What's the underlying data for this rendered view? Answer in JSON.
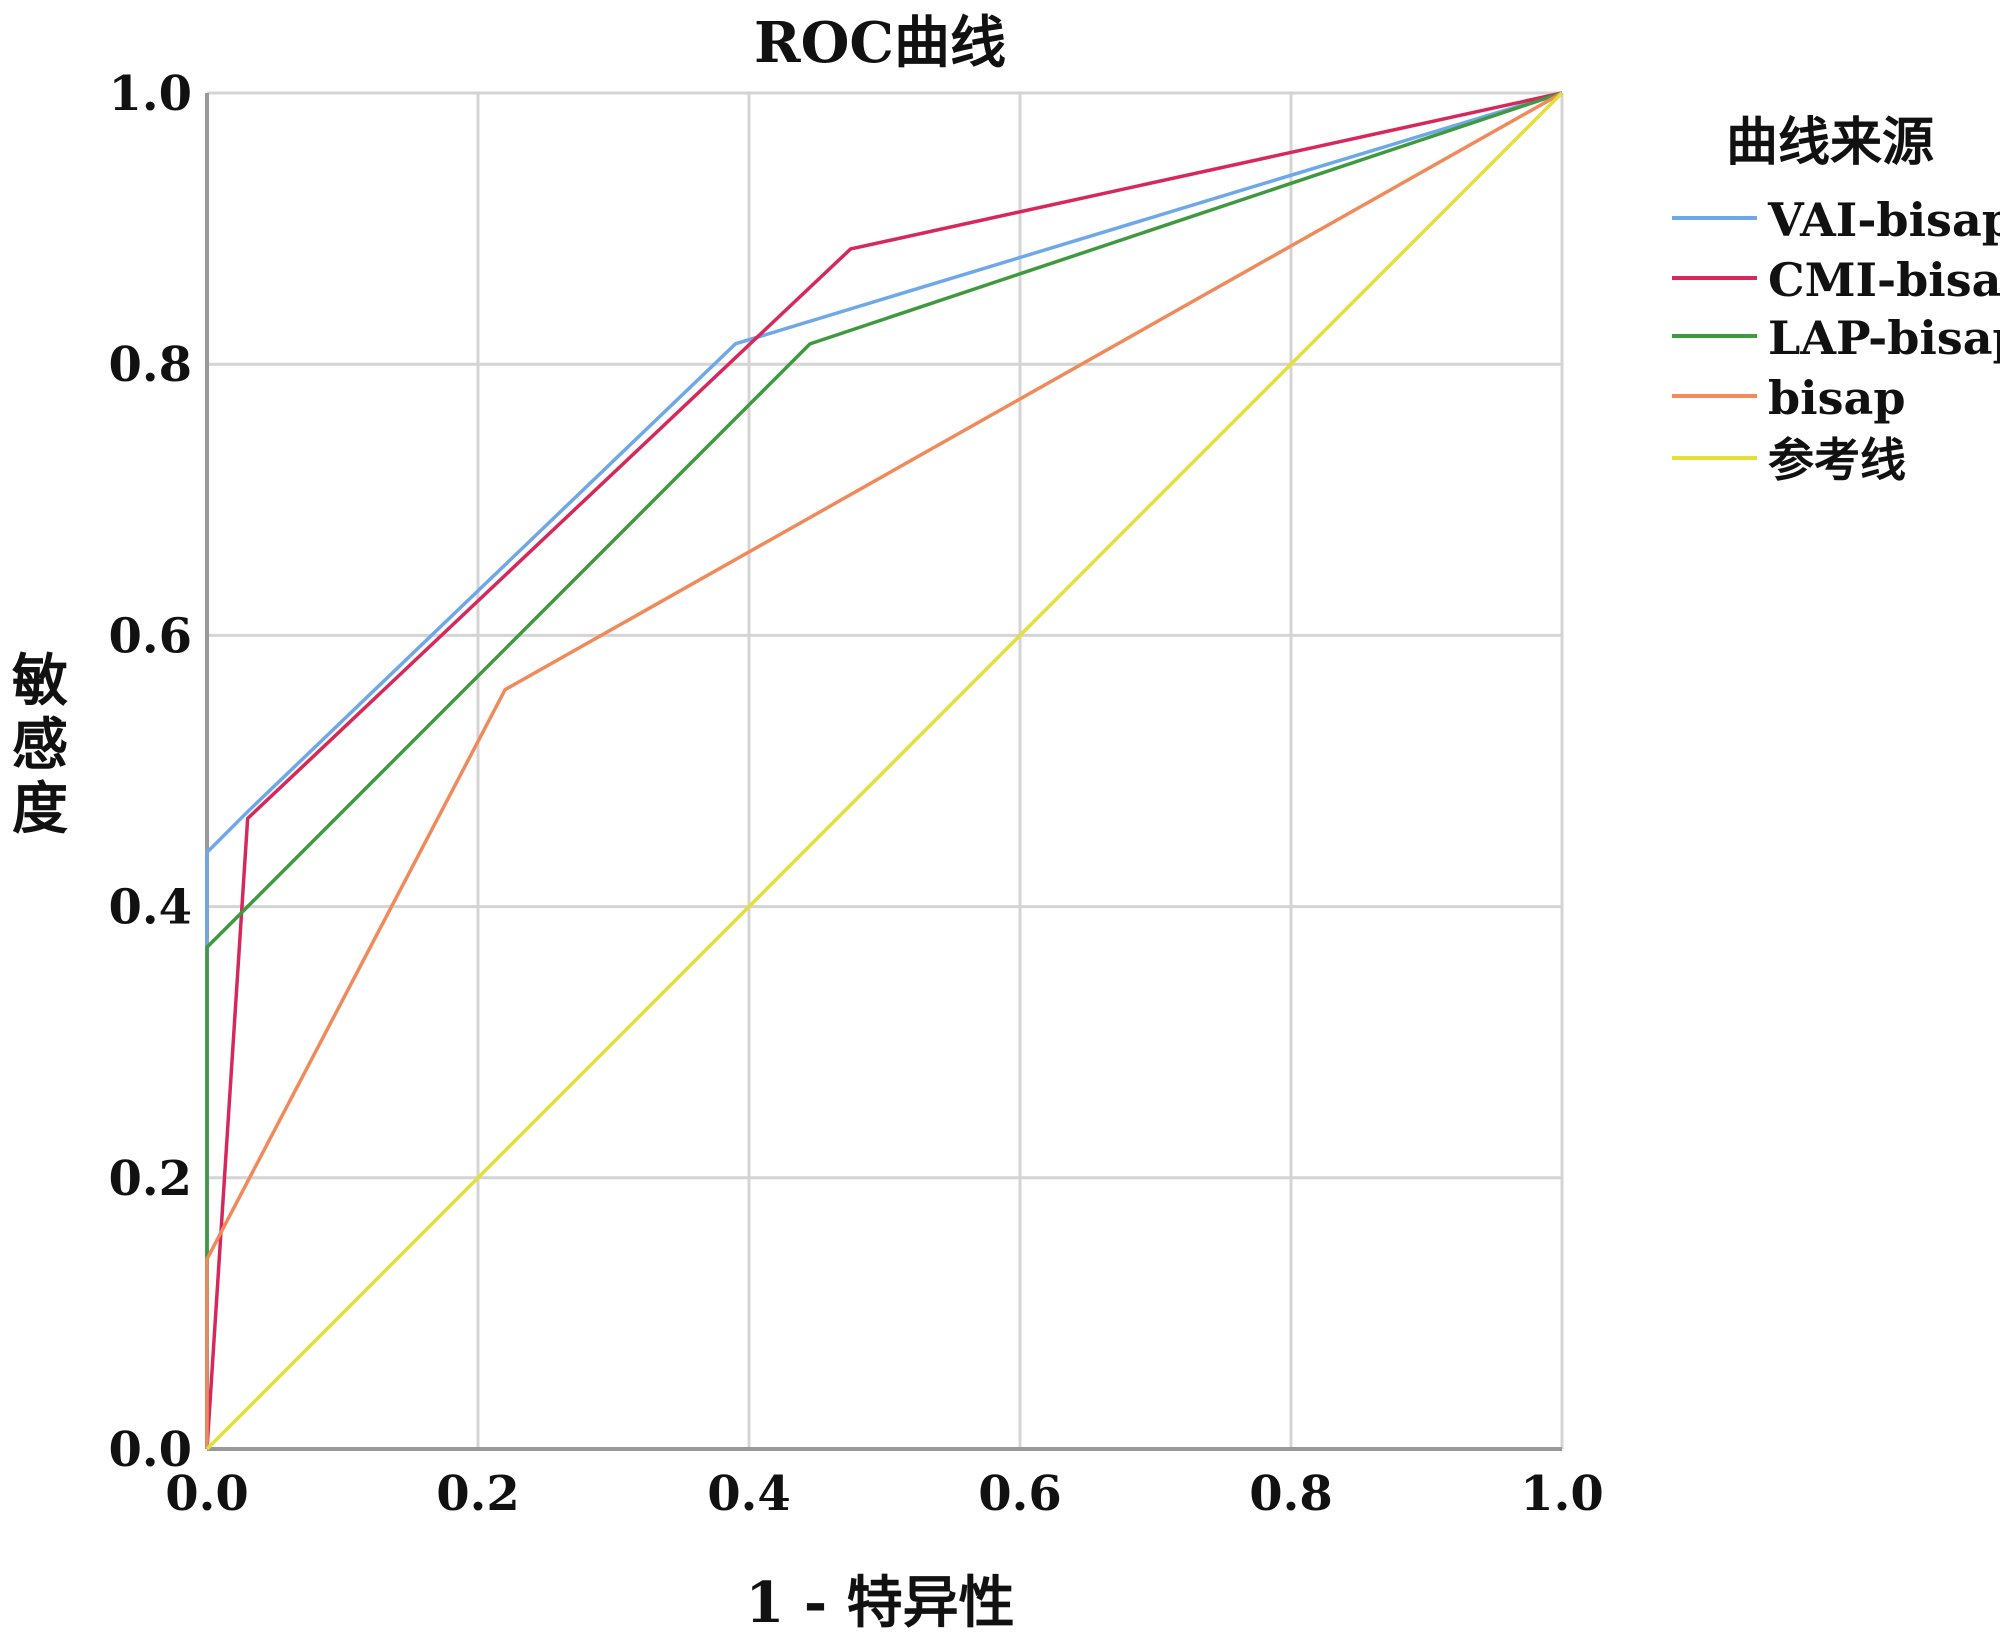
{
  "chart_data": {
    "type": "line",
    "title": "ROC曲线",
    "xlabel": "1 - 特异性",
    "ylabel": "敏感度",
    "xlim": [
      0,
      1
    ],
    "ylim": [
      0,
      1
    ],
    "x_ticks": [
      "0.0",
      "0.2",
      "0.4",
      "0.6",
      "0.8",
      "1.0"
    ],
    "y_ticks": [
      "0.0",
      "0.2",
      "0.4",
      "0.6",
      "0.8",
      "1.0"
    ],
    "grid": true,
    "legend_title": "曲线来源",
    "legend_position": "right",
    "series": [
      {
        "name": "VAI-bisap",
        "color": "#6fa8e8",
        "points": [
          [
            0,
            0
          ],
          [
            0,
            0.44
          ],
          [
            0.03,
            0.47
          ],
          [
            0.39,
            0.815
          ],
          [
            1,
            1
          ]
        ]
      },
      {
        "name": "CMI-bisap",
        "color": "#d6285a",
        "points": [
          [
            0,
            0
          ],
          [
            0.03,
            0.465
          ],
          [
            0.475,
            0.885
          ],
          [
            1,
            1
          ]
        ]
      },
      {
        "name": "LAP-bisap",
        "color": "#3f9a3f",
        "points": [
          [
            0,
            0
          ],
          [
            0,
            0.37
          ],
          [
            0.445,
            0.815
          ],
          [
            1,
            1
          ]
        ]
      },
      {
        "name": "bisap",
        "color": "#f08a5a",
        "points": [
          [
            0,
            0
          ],
          [
            0,
            0.14
          ],
          [
            0.22,
            0.56
          ],
          [
            1,
            1
          ]
        ]
      },
      {
        "name": "参考线",
        "color": "#e6de3a",
        "points": [
          [
            0,
            0
          ],
          [
            1,
            1
          ]
        ]
      }
    ]
  }
}
